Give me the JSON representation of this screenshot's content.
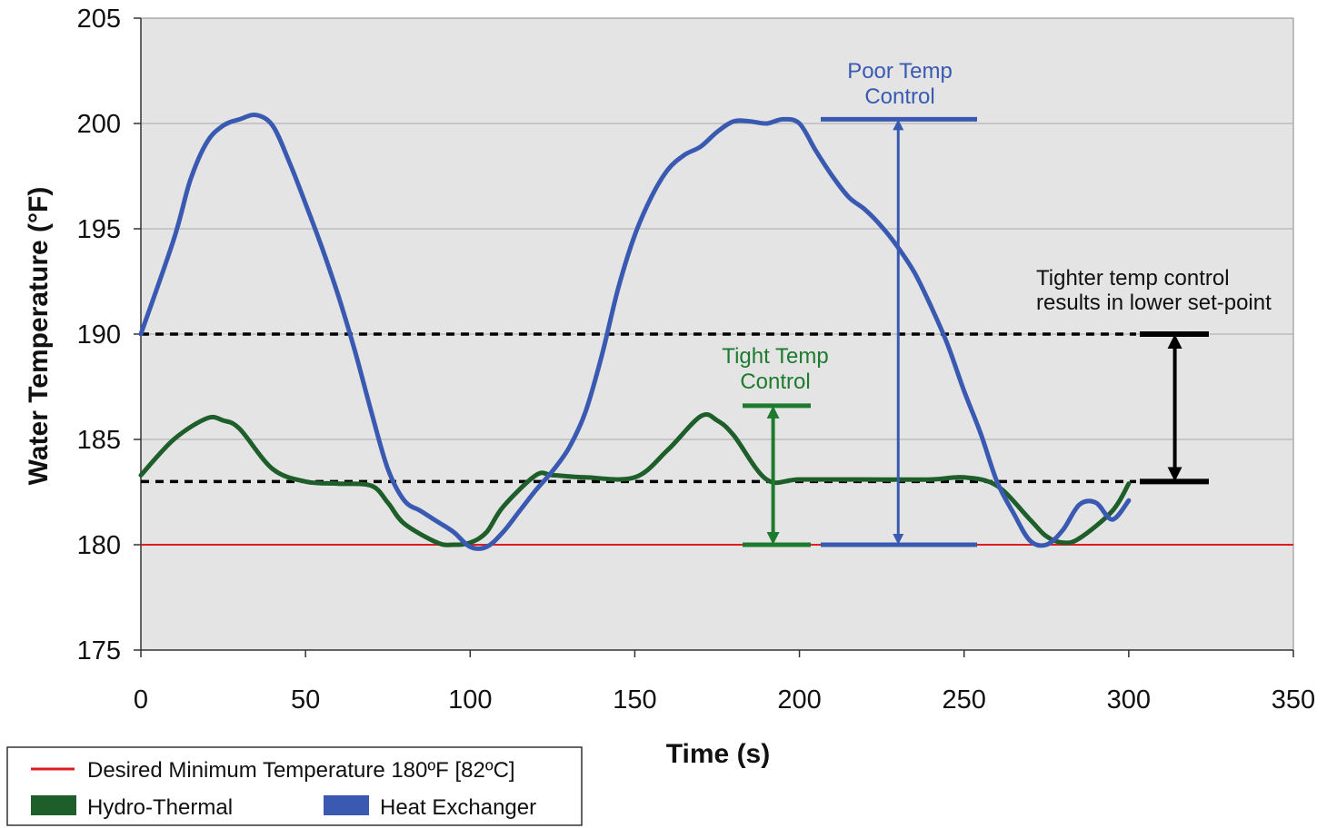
{
  "chart_data": {
    "type": "line",
    "xlabel": "Time (s)",
    "ylabel": "Water Temperature (°F)",
    "xlim": [
      0,
      350
    ],
    "ylim": [
      175,
      205
    ],
    "x_ticks": [
      0,
      50,
      100,
      150,
      200,
      250,
      300,
      350
    ],
    "y_ticks": [
      175,
      180,
      185,
      190,
      195,
      200,
      205
    ],
    "grid": "horizontal",
    "plot_background": "#e4e4e4",
    "legend_position": "bottom-left",
    "reference_lines": [
      {
        "name": "Desired Minimum Temperature 180ºF [82ºC]",
        "y": 180,
        "color": "#e11b22",
        "style": "solid"
      },
      {
        "y": 190,
        "color": "#000000",
        "style": "dashed"
      },
      {
        "y": 183,
        "color": "#000000",
        "style": "dashed"
      }
    ],
    "series": [
      {
        "name": "Hydro-Thermal",
        "color": "#1e5e2a",
        "x": [
          0,
          10,
          20,
          25,
          30,
          40,
          50,
          60,
          70,
          75,
          80,
          90,
          95,
          100,
          105,
          110,
          120,
          125,
          135,
          150,
          160,
          170,
          175,
          180,
          190,
          200,
          220,
          240,
          250,
          260,
          270,
          275,
          280,
          285,
          295,
          300
        ],
        "y": [
          183.3,
          185,
          186,
          185.9,
          185.5,
          183.6,
          183.0,
          182.9,
          182.8,
          182.0,
          181.0,
          180.1,
          180.0,
          180.1,
          180.6,
          181.8,
          183.3,
          183.3,
          183.2,
          183.2,
          184.5,
          186.1,
          185.9,
          185.2,
          183.1,
          183.1,
          183.1,
          183.1,
          183.2,
          182.8,
          181.2,
          180.4,
          180.1,
          180.3,
          181.6,
          182.9
        ]
      },
      {
        "name": "Heat Exchanger",
        "color": "#3a5ab2",
        "x": [
          0,
          10,
          15,
          20,
          25,
          30,
          35,
          40,
          45,
          50,
          55,
          60,
          65,
          70,
          75,
          80,
          85,
          90,
          95,
          100,
          105,
          110,
          115,
          120,
          125,
          130,
          135,
          140,
          145,
          150,
          155,
          160,
          165,
          170,
          175,
          180,
          185,
          190,
          195,
          200,
          205,
          210,
          215,
          220,
          225,
          230,
          235,
          240,
          245,
          250,
          255,
          260,
          265,
          270,
          275,
          280,
          285,
          290,
          295,
          300
        ],
        "y": [
          190,
          194.5,
          197.3,
          199.1,
          199.9,
          200.2,
          200.4,
          199.9,
          198.2,
          196.2,
          194.1,
          191.8,
          189.2,
          186.3,
          183.6,
          182.1,
          181.6,
          181.1,
          180.6,
          179.9,
          179.9,
          180.6,
          181.6,
          182.6,
          183.5,
          184.6,
          186.3,
          189,
          192.2,
          194.7,
          196.5,
          197.8,
          198.5,
          198.9,
          199.6,
          200.1,
          200.1,
          200,
          200.2,
          200,
          198.7,
          197.5,
          196.5,
          195.9,
          195.1,
          194.1,
          192.9,
          191.3,
          189.5,
          187.3,
          185.3,
          183,
          181.5,
          180.2,
          180,
          180.7,
          181.9,
          182.0,
          181.2,
          182.1
        ]
      }
    ],
    "annotations": [
      {
        "text": [
          "Poor Temp",
          "Control"
        ],
        "color": "#3a5ab2",
        "range": [
          180,
          200.2
        ],
        "at_x": 230
      },
      {
        "text": [
          "Tight Temp",
          "Control"
        ],
        "color": "#1e7a2e",
        "range": [
          180,
          186.6
        ],
        "at_x": 192
      },
      {
        "text": [
          "Tighter temp control",
          "results in lower set-point"
        ],
        "color": "#111111",
        "range": [
          183,
          190
        ],
        "at_x": 314
      }
    ],
    "legend": [
      {
        "label": "Desired Minimum Temperature 180ºF [82ºC]",
        "color": "#e11b22",
        "kind": "line"
      },
      {
        "label": "Hydro-Thermal",
        "color": "#1e5e2a",
        "kind": "box"
      },
      {
        "label": "Heat Exchanger",
        "color": "#3a5ab2",
        "kind": "box"
      }
    ]
  }
}
